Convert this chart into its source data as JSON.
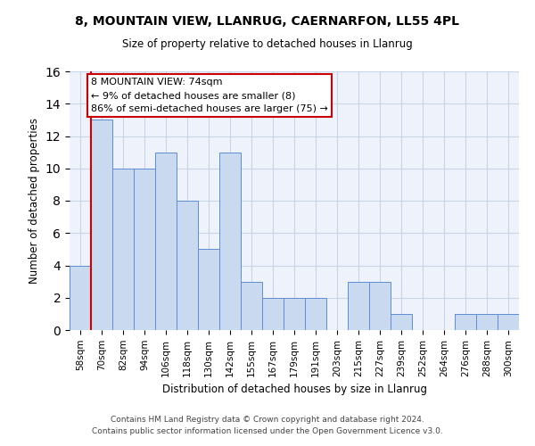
{
  "title1": "8, MOUNTAIN VIEW, LLANRUG, CAERNARFON, LL55 4PL",
  "title2": "Size of property relative to detached houses in Llanrug",
  "xlabel": "Distribution of detached houses by size in Llanrug",
  "ylabel": "Number of detached properties",
  "categories": [
    "58sqm",
    "70sqm",
    "82sqm",
    "94sqm",
    "106sqm",
    "118sqm",
    "130sqm",
    "142sqm",
    "155sqm",
    "167sqm",
    "179sqm",
    "191sqm",
    "203sqm",
    "215sqm",
    "227sqm",
    "239sqm",
    "252sqm",
    "264sqm",
    "276sqm",
    "288sqm",
    "300sqm"
  ],
  "values": [
    4,
    13,
    10,
    10,
    11,
    8,
    5,
    11,
    3,
    2,
    2,
    2,
    0,
    3,
    3,
    1,
    0,
    0,
    1,
    1,
    1
  ],
  "bar_color": "#c9d9f0",
  "bar_edge_color": "#5f8dd3",
  "red_line_index": 1,
  "annotation_title": "8 MOUNTAIN VIEW: 74sqm",
  "annotation_line1": "← 9% of detached houses are smaller (8)",
  "annotation_line2": "86% of semi-detached houses are larger (75) →",
  "annotation_box_color": "#ffffff",
  "annotation_box_edge": "#cc0000",
  "red_line_color": "#cc0000",
  "ylim": [
    0,
    16
  ],
  "yticks": [
    0,
    2,
    4,
    6,
    8,
    10,
    12,
    14,
    16
  ],
  "grid_color": "#c8d4e8",
  "bg_color": "#eef2fb",
  "footer1": "Contains HM Land Registry data © Crown copyright and database right 2024.",
  "footer2": "Contains public sector information licensed under the Open Government Licence v3.0."
}
